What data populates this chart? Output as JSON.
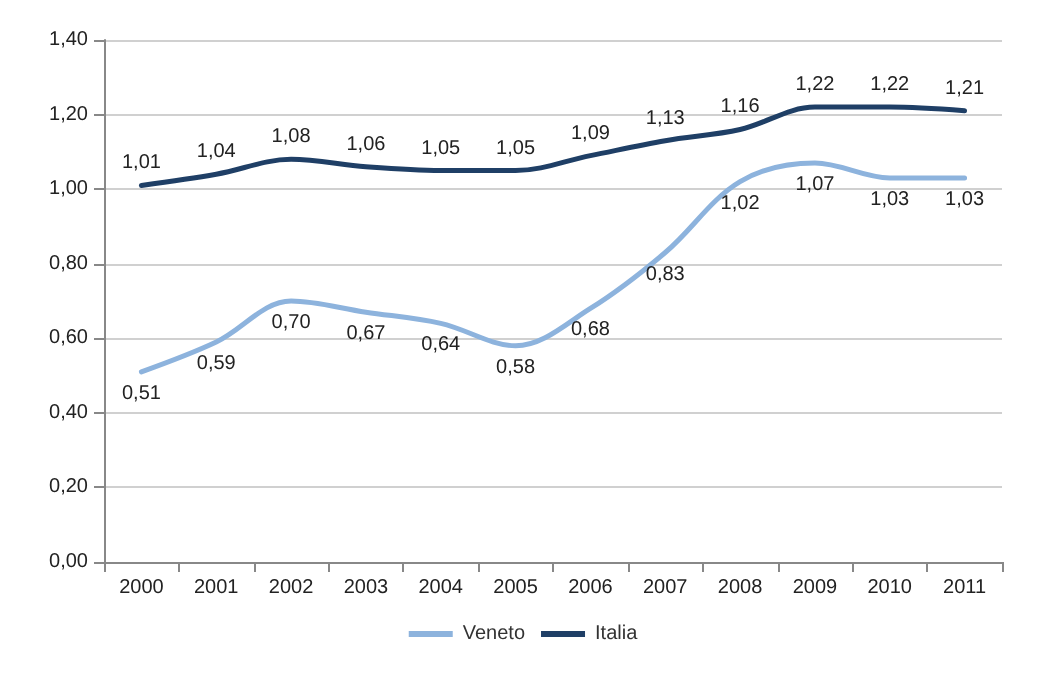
{
  "chart_data": {
    "type": "line",
    "categories": [
      "2000",
      "2001",
      "2002",
      "2003",
      "2004",
      "2005",
      "2006",
      "2007",
      "2008",
      "2009",
      "2010",
      "2011"
    ],
    "series": [
      {
        "name": "Veneto",
        "color": "#8db3dd",
        "values": [
          0.51,
          0.59,
          0.7,
          0.67,
          0.64,
          0.58,
          0.68,
          0.83,
          1.02,
          1.07,
          1.03,
          1.03
        ],
        "value_labels": [
          "0,51",
          "0,59",
          "0,70",
          "0,67",
          "0,64",
          "0,58",
          "0,68",
          "0,83",
          "1,02",
          "1,07",
          "1,03",
          "1,03"
        ]
      },
      {
        "name": "Italia",
        "color": "#1f3f66",
        "values": [
          1.01,
          1.04,
          1.08,
          1.06,
          1.05,
          1.05,
          1.09,
          1.13,
          1.16,
          1.22,
          1.22,
          1.21
        ],
        "value_labels": [
          "1,01",
          "1,04",
          "1,08",
          "1,06",
          "1,05",
          "1,05",
          "1,09",
          "1,13",
          "1,16",
          "1,22",
          "1,22",
          "1,21"
        ]
      }
    ],
    "ylim": [
      0,
      1.4
    ],
    "yticks": [
      {
        "value": 0,
        "label": "0,00"
      },
      {
        "value": 0.2,
        "label": "0,20"
      },
      {
        "value": 0.4,
        "label": "0,40"
      },
      {
        "value": 0.6,
        "label": "0,60"
      },
      {
        "value": 0.8,
        "label": "0,80"
      },
      {
        "value": 1,
        "label": "1,00"
      },
      {
        "value": 1.2,
        "label": "1,20"
      },
      {
        "value": 1.4,
        "label": "1,40"
      }
    ],
    "grid": "y",
    "legend": "bottom",
    "marker": "none",
    "line_style": "solid"
  }
}
